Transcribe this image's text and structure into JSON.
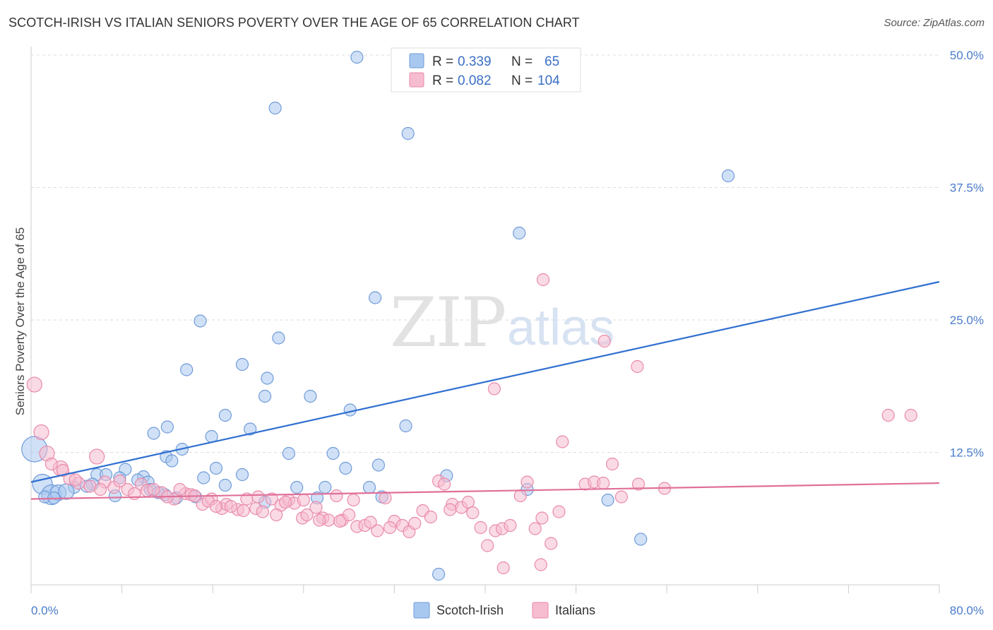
{
  "title": "SCOTCH-IRISH VS ITALIAN SENIORS POVERTY OVER THE AGE OF 65 CORRELATION CHART",
  "source": "Source: ZipAtlas.com",
  "watermark": {
    "zip": "ZIP",
    "atlas": "atlas"
  },
  "legend": {
    "rows": [
      {
        "r_label": "R =",
        "r_value": "0.339",
        "n_label": "N =",
        "n_value": "65",
        "color": "#a9c8f0",
        "stroke": "#6f9bd8"
      },
      {
        "r_label": "R =",
        "r_value": "0.082",
        "n_label": "N =",
        "n_value": "104",
        "color": "#f6bcd0",
        "stroke": "#e98aaa"
      }
    ]
  },
  "bottom_legend": [
    {
      "label": "Scotch-Irish",
      "color": "#a9c8f0",
      "stroke": "#6f9bd8"
    },
    {
      "label": "Italians",
      "color": "#f6bcd0",
      "stroke": "#e98aaa"
    }
  ],
  "chart_data": {
    "type": "scatter",
    "title": "SCOTCH-IRISH VS ITALIAN SENIORS POVERTY OVER THE AGE OF 65 CORRELATION CHART",
    "xlabel": "",
    "ylabel": "Seniors Poverty Over the Age of 65",
    "xlim": [
      0,
      80
    ],
    "ylim": [
      0,
      50
    ],
    "x_tick_labels": [
      "0.0%",
      "80.0%"
    ],
    "y_tick_labels": [
      "12.5%",
      "25.0%",
      "37.5%",
      "50.0%"
    ],
    "y_ticks": [
      12.5,
      25.0,
      37.5,
      50.0
    ],
    "grid": true,
    "series": [
      {
        "name": "Scotch-Irish",
        "color": "#a9c8f0",
        "stroke": "#6f9bd8",
        "line_color": "#2f6fd0",
        "trend": [
          [
            0,
            9.7
          ],
          [
            80,
            28.6
          ]
        ],
        "points": [
          [
            28.7,
            49.8
          ],
          [
            21.5,
            45.0
          ],
          [
            33.2,
            42.6
          ],
          [
            61.4,
            38.6
          ],
          [
            43.0,
            33.2
          ],
          [
            30.3,
            27.1
          ],
          [
            14.9,
            24.9
          ],
          [
            21.8,
            23.3
          ],
          [
            13.7,
            20.3
          ],
          [
            18.6,
            20.8
          ],
          [
            20.8,
            19.5
          ],
          [
            20.6,
            17.8
          ],
          [
            24.6,
            17.8
          ],
          [
            28.1,
            16.5
          ],
          [
            17.1,
            16.0
          ],
          [
            33.0,
            15.0
          ],
          [
            12.0,
            14.9
          ],
          [
            19.3,
            14.7
          ],
          [
            10.8,
            14.3
          ],
          [
            15.9,
            14.0
          ],
          [
            13.3,
            12.8
          ],
          [
            22.7,
            12.4
          ],
          [
            26.6,
            12.4
          ],
          [
            11.9,
            12.1
          ],
          [
            12.4,
            11.7
          ],
          [
            30.6,
            11.3
          ],
          [
            16.3,
            11.0
          ],
          [
            27.7,
            11.0
          ],
          [
            8.3,
            10.9
          ],
          [
            5.8,
            10.4
          ],
          [
            6.6,
            10.4
          ],
          [
            18.6,
            10.4
          ],
          [
            36.6,
            10.3
          ],
          [
            15.2,
            10.1
          ],
          [
            7.8,
            10.1
          ],
          [
            9.9,
            10.2
          ],
          [
            10.3,
            9.7
          ],
          [
            9.4,
            9.9
          ],
          [
            5.4,
            9.5
          ],
          [
            17.1,
            9.4
          ],
          [
            23.4,
            9.2
          ],
          [
            25.9,
            9.2
          ],
          [
            29.8,
            9.2
          ],
          [
            10.5,
            9.0
          ],
          [
            3.8,
            9.2
          ],
          [
            4.9,
            9.3
          ],
          [
            11.8,
            8.5
          ],
          [
            12.8,
            8.2
          ],
          [
            14.5,
            8.3
          ],
          [
            20.6,
            7.8
          ],
          [
            25.2,
            8.2
          ],
          [
            30.9,
            8.3
          ],
          [
            43.7,
            9.0
          ],
          [
            50.8,
            8.0
          ],
          [
            1.0,
            9.5
          ],
          [
            1.8,
            8.5
          ],
          [
            2.4,
            8.7
          ],
          [
            3.1,
            8.8
          ],
          [
            7.4,
            8.4
          ],
          [
            1.2,
            8.3
          ],
          [
            53.7,
            4.3
          ],
          [
            35.9,
            1.0
          ],
          [
            0.3,
            12.8
          ],
          [
            2.0,
            8.2
          ],
          [
            11.2,
            8.7
          ]
        ]
      },
      {
        "name": "Italians",
        "color": "#f6bcd0",
        "stroke": "#e98aaa",
        "line_color": "#e0709a",
        "trend": [
          [
            0,
            8.1
          ],
          [
            80,
            9.6
          ]
        ],
        "points": [
          [
            0.3,
            18.9
          ],
          [
            0.9,
            14.4
          ],
          [
            1.4,
            12.4
          ],
          [
            2.6,
            11.0
          ],
          [
            5.8,
            12.1
          ],
          [
            45.1,
            28.8
          ],
          [
            50.5,
            23.0
          ],
          [
            53.4,
            20.6
          ],
          [
            40.8,
            18.5
          ],
          [
            75.5,
            16.0
          ],
          [
            77.5,
            16.0
          ],
          [
            46.8,
            13.5
          ],
          [
            51.2,
            11.4
          ],
          [
            2.8,
            10.8
          ],
          [
            3.4,
            10.0
          ],
          [
            4.2,
            9.6
          ],
          [
            5.2,
            9.3
          ],
          [
            6.5,
            9.7
          ],
          [
            7.3,
            9.2
          ],
          [
            8.5,
            9.0
          ],
          [
            9.7,
            9.5
          ],
          [
            10.2,
            8.9
          ],
          [
            11.5,
            8.7
          ],
          [
            12.6,
            8.1
          ],
          [
            13.6,
            8.6
          ],
          [
            14.1,
            8.5
          ],
          [
            15.1,
            7.6
          ],
          [
            15.9,
            8.1
          ],
          [
            16.8,
            7.2
          ],
          [
            17.2,
            7.6
          ],
          [
            18.2,
            7.1
          ],
          [
            19.0,
            8.1
          ],
          [
            19.8,
            7.2
          ],
          [
            20.4,
            6.9
          ],
          [
            21.2,
            8.1
          ],
          [
            22.0,
            7.5
          ],
          [
            22.7,
            8.0
          ],
          [
            23.2,
            7.7
          ],
          [
            23.9,
            6.3
          ],
          [
            24.3,
            6.6
          ],
          [
            25.1,
            7.3
          ],
          [
            25.7,
            6.3
          ],
          [
            26.2,
            6.1
          ],
          [
            26.9,
            8.4
          ],
          [
            27.4,
            6.1
          ],
          [
            28.0,
            6.6
          ],
          [
            28.7,
            5.5
          ],
          [
            29.4,
            5.6
          ],
          [
            29.9,
            5.9
          ],
          [
            30.5,
            5.1
          ],
          [
            31.2,
            8.2
          ],
          [
            32.0,
            6.0
          ],
          [
            32.7,
            5.6
          ],
          [
            33.3,
            5.0
          ],
          [
            33.8,
            5.8
          ],
          [
            34.5,
            7.0
          ],
          [
            35.2,
            6.4
          ],
          [
            35.9,
            9.8
          ],
          [
            36.4,
            9.5
          ],
          [
            37.1,
            7.6
          ],
          [
            37.9,
            7.3
          ],
          [
            38.5,
            7.8
          ],
          [
            38.9,
            6.8
          ],
          [
            39.6,
            5.4
          ],
          [
            40.2,
            3.7
          ],
          [
            40.9,
            5.1
          ],
          [
            41.5,
            5.3
          ],
          [
            42.2,
            5.6
          ],
          [
            43.1,
            8.4
          ],
          [
            43.7,
            9.7
          ],
          [
            44.4,
            5.3
          ],
          [
            45.0,
            6.3
          ],
          [
            45.8,
            3.9
          ],
          [
            46.5,
            6.9
          ],
          [
            48.8,
            9.5
          ],
          [
            49.6,
            9.7
          ],
          [
            50.4,
            9.6
          ],
          [
            52.0,
            8.3
          ],
          [
            53.5,
            9.5
          ],
          [
            55.8,
            9.1
          ],
          [
            44.9,
            1.9
          ],
          [
            41.6,
            1.6
          ],
          [
            1.8,
            11.4
          ],
          [
            3.9,
            9.9
          ],
          [
            6.1,
            9.0
          ],
          [
            7.8,
            9.8
          ],
          [
            9.1,
            8.6
          ],
          [
            10.8,
            9.0
          ],
          [
            12.0,
            8.3
          ],
          [
            13.1,
            9.0
          ],
          [
            14.4,
            8.4
          ],
          [
            15.6,
            7.9
          ],
          [
            16.3,
            7.4
          ],
          [
            17.6,
            7.4
          ],
          [
            18.7,
            7.0
          ],
          [
            20.0,
            8.3
          ],
          [
            21.6,
            6.6
          ],
          [
            22.4,
            7.8
          ],
          [
            24.0,
            8.0
          ],
          [
            25.4,
            6.1
          ],
          [
            27.2,
            6.0
          ],
          [
            28.4,
            8.0
          ],
          [
            31.6,
            5.4
          ],
          [
            36.9,
            7.1
          ]
        ]
      }
    ]
  }
}
